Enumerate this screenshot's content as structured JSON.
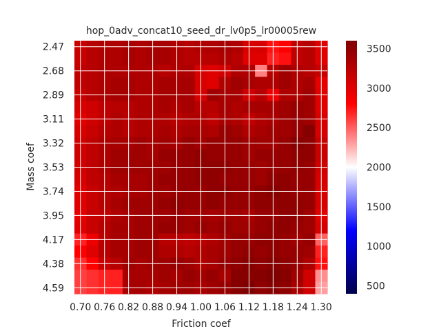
{
  "chart_data": {
    "type": "heatmap",
    "title": "hop_0adv_concat10_seed_dr_lv0p5_lr00005rew",
    "xlabel": "Friction coef",
    "ylabel": "Mass coef",
    "x_tick_labels": [
      "0.70",
      "0.76",
      "0.82",
      "0.88",
      "0.94",
      "1.00",
      "1.06",
      "1.12",
      "1.18",
      "1.24",
      "1.30"
    ],
    "y_tick_labels": [
      "2.47",
      "2.68",
      "2.89",
      "3.11",
      "3.32",
      "3.53",
      "3.74",
      "3.95",
      "4.17",
      "4.38",
      "4.59"
    ],
    "x": [
      0.7,
      0.73,
      0.76,
      0.79,
      0.82,
      0.85,
      0.88,
      0.91,
      0.94,
      0.97,
      1.0,
      1.03,
      1.06,
      1.09,
      1.12,
      1.15,
      1.18,
      1.21,
      1.24,
      1.27,
      1.3
    ],
    "y": [
      2.47,
      2.57,
      2.68,
      2.78,
      2.89,
      3.0,
      3.11,
      3.21,
      3.32,
      3.42,
      3.53,
      3.63,
      3.74,
      3.84,
      3.95,
      4.06,
      4.17,
      4.27,
      4.38,
      4.48,
      4.59
    ],
    "z": [
      [
        3150,
        3250,
        3300,
        3300,
        3350,
        3300,
        3350,
        3350,
        3300,
        3250,
        3300,
        3300,
        3350,
        3300,
        3050,
        3050,
        2750,
        2800,
        3200,
        3250,
        3000
      ],
      [
        3150,
        3250,
        3300,
        3300,
        3350,
        3300,
        3350,
        3350,
        3300,
        3250,
        3250,
        3250,
        3300,
        3250,
        3000,
        3000,
        2700,
        2750,
        3200,
        3250,
        3000
      ],
      [
        3200,
        3250,
        3300,
        3300,
        3300,
        3300,
        3300,
        3250,
        3300,
        3300,
        3050,
        3000,
        3100,
        3300,
        3300,
        2400,
        3250,
        3400,
        3300,
        3250,
        3150
      ],
      [
        3200,
        3250,
        3300,
        3350,
        3350,
        3300,
        3300,
        3350,
        3350,
        3350,
        3050,
        3000,
        3300,
        3400,
        3350,
        3300,
        3300,
        3400,
        3300,
        3350,
        2950
      ],
      [
        3150,
        3250,
        3300,
        3350,
        3350,
        3300,
        3300,
        3350,
        3350,
        3350,
        3050,
        3400,
        3350,
        3350,
        3100,
        3250,
        2900,
        3300,
        3300,
        3400,
        3000
      ],
      [
        3050,
        3100,
        3200,
        3250,
        3250,
        3300,
        3300,
        3350,
        3300,
        3350,
        3250,
        3250,
        3350,
        3300,
        3350,
        3350,
        3350,
        3400,
        3450,
        3400,
        3000
      ],
      [
        3000,
        3100,
        3200,
        3300,
        3250,
        3300,
        3300,
        3300,
        3250,
        3300,
        3300,
        3200,
        3350,
        3300,
        3200,
        3300,
        3350,
        3400,
        3450,
        3400,
        3050
      ],
      [
        3050,
        3150,
        3250,
        3300,
        3250,
        3300,
        3300,
        3350,
        3300,
        3350,
        3350,
        3300,
        3450,
        3400,
        3300,
        3350,
        3400,
        3400,
        3450,
        3550,
        3050
      ],
      [
        3100,
        3200,
        3300,
        3350,
        3350,
        3400,
        3350,
        3400,
        3350,
        3450,
        3400,
        3450,
        3450,
        3450,
        3400,
        3400,
        3400,
        3450,
        3550,
        3500,
        3150
      ],
      [
        3100,
        3200,
        3300,
        3400,
        3400,
        3400,
        3350,
        3450,
        3450,
        3450,
        3500,
        3450,
        3450,
        3450,
        3400,
        3450,
        3450,
        3450,
        3500,
        3500,
        3150
      ],
      [
        3100,
        3200,
        3300,
        3400,
        3400,
        3400,
        3400,
        3400,
        3450,
        3450,
        3500,
        3500,
        3500,
        3450,
        3450,
        3400,
        3450,
        3450,
        3500,
        3450,
        3100
      ],
      [
        3050,
        3200,
        3250,
        3350,
        3350,
        3350,
        3400,
        3450,
        3450,
        3450,
        3500,
        3500,
        3450,
        3450,
        3450,
        3400,
        3500,
        3500,
        3450,
        3450,
        3050
      ],
      [
        3000,
        3150,
        3250,
        3300,
        3350,
        3350,
        3400,
        3400,
        3450,
        3450,
        3450,
        3500,
        3500,
        3450,
        3450,
        3500,
        3550,
        3500,
        3450,
        3450,
        3050
      ],
      [
        3000,
        3150,
        3250,
        3350,
        3400,
        3400,
        3400,
        3450,
        3500,
        3450,
        3450,
        3500,
        3450,
        3450,
        3450,
        3500,
        3500,
        3500,
        3500,
        3450,
        3050
      ],
      [
        2950,
        3150,
        3200,
        3300,
        3350,
        3400,
        3400,
        3400,
        3450,
        3400,
        3400,
        3350,
        3400,
        3400,
        3350,
        3450,
        3450,
        3500,
        3500,
        3400,
        3000
      ],
      [
        3000,
        3150,
        3250,
        3350,
        3350,
        3400,
        3400,
        3450,
        3450,
        3400,
        3450,
        3400,
        3450,
        3400,
        3400,
        3450,
        3500,
        3500,
        3450,
        3400,
        3050
      ],
      [
        2700,
        2900,
        3250,
        3350,
        3350,
        3400,
        3400,
        3250,
        3250,
        3200,
        3250,
        3300,
        3400,
        3450,
        3450,
        3500,
        3500,
        3450,
        3400,
        3450,
        2500
      ],
      [
        2800,
        3000,
        3250,
        3350,
        3350,
        3400,
        3400,
        3300,
        3300,
        3250,
        3300,
        3350,
        3400,
        3450,
        3500,
        3450,
        3500,
        3450,
        3450,
        3400,
        2700
      ],
      [
        2650,
        2800,
        3150,
        3250,
        3400,
        3350,
        3400,
        3400,
        3450,
        3400,
        3300,
        3350,
        3450,
        3500,
        3550,
        3500,
        3550,
        3500,
        3450,
        3300,
        2750
      ],
      [
        2600,
        2650,
        2700,
        2700,
        3350,
        3350,
        3350,
        3400,
        3350,
        3450,
        3400,
        3450,
        3350,
        3550,
        3550,
        3550,
        3600,
        3550,
        3400,
        3100,
        2350
      ],
      [
        2600,
        2650,
        2700,
        2700,
        3350,
        3350,
        3300,
        3350,
        3400,
        3400,
        3350,
        3400,
        3450,
        3550,
        3600,
        3500,
        3550,
        3500,
        3350,
        3100,
        2300
      ]
    ],
    "zlim": [
      400,
      3600
    ],
    "colormap": "seismic",
    "colorbar_ticks": [
      500,
      1000,
      1500,
      2000,
      2500,
      3000,
      3500
    ],
    "grid": true,
    "grid_color": "#ffffff",
    "legend": "colorbar right"
  }
}
